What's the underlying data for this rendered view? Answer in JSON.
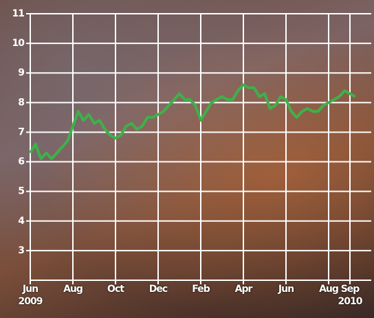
{
  "chart_data": {
    "type": "line",
    "xlim": [
      0,
      16
    ],
    "xticks": [
      {
        "value": 0,
        "label": "Jun 2009"
      },
      {
        "value": 2,
        "label": "Aug"
      },
      {
        "value": 4,
        "label": "Oct"
      },
      {
        "value": 6,
        "label": "Dec"
      },
      {
        "value": 8,
        "label": "Feb"
      },
      {
        "value": 10,
        "label": "Apr"
      },
      {
        "value": 12,
        "label": "Jun"
      },
      {
        "value": 14,
        "label": "Aug"
      },
      {
        "value": 15,
        "label": "Sep 2010"
      }
    ],
    "ylim": [
      2,
      11
    ],
    "yticks": [
      3,
      4,
      5,
      6,
      7,
      8,
      9,
      10,
      11
    ],
    "grid": true,
    "x": [
      0,
      0.25,
      0.5,
      0.75,
      1,
      1.25,
      1.5,
      1.75,
      2,
      2.25,
      2.5,
      2.75,
      3,
      3.25,
      3.5,
      3.75,
      4,
      4.25,
      4.5,
      4.75,
      5,
      5.25,
      5.5,
      5.75,
      6,
      6.25,
      6.5,
      6.75,
      7,
      7.25,
      7.5,
      7.75,
      8,
      8.25,
      8.5,
      8.75,
      9,
      9.25,
      9.5,
      9.75,
      10,
      10.25,
      10.5,
      10.75,
      11,
      11.25,
      11.5,
      11.75,
      12,
      12.25,
      12.5,
      12.75,
      13,
      13.25,
      13.5,
      13.75,
      14,
      14.25,
      14.5,
      14.75,
      15,
      15.25
    ],
    "series": [
      {
        "color": "#3fb04a",
        "values": [
          6.3,
          6.6,
          6.1,
          6.3,
          6.1,
          6.3,
          6.5,
          6.7,
          7.2,
          7.7,
          7.4,
          7.6,
          7.3,
          7.4,
          7.1,
          6.9,
          6.8,
          6.9,
          7.2,
          7.3,
          7.1,
          7.2,
          7.5,
          7.5,
          7.6,
          7.7,
          7.9,
          8.1,
          8.3,
          8.1,
          8.1,
          7.9,
          7.4,
          7.7,
          8.0,
          8.1,
          8.2,
          8.1,
          8.1,
          8.4,
          8.6,
          8.5,
          8.5,
          8.2,
          8.3,
          7.8,
          7.9,
          8.2,
          8.1,
          7.7,
          7.5,
          7.7,
          7.8,
          7.7,
          7.7,
          7.9,
          8.0,
          8.1,
          8.2,
          8.4,
          8.3,
          8.2
        ]
      }
    ]
  }
}
